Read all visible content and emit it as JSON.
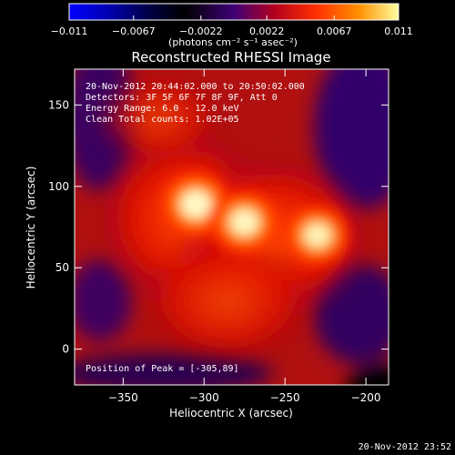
{
  "colorbar": {
    "ticks": [
      {
        "value": -0.011,
        "label": "−0.011"
      },
      {
        "value": -0.0067,
        "label": "−0.0067"
      },
      {
        "value": -0.0022,
        "label": "−0.0022"
      },
      {
        "value": 0.0022,
        "label": "0.0022"
      },
      {
        "value": 0.0067,
        "label": "0.0067"
      },
      {
        "value": 0.011,
        "label": "0.011"
      }
    ],
    "range": [
      -0.011,
      0.011
    ],
    "unit_label": "(photons cm⁻² s⁻¹ asec⁻²)"
  },
  "chart_data": {
    "type": "heatmap",
    "title": "Reconstructed RHESSI Image",
    "xlabel": "Heliocentric X (arcsec)",
    "ylabel": "Heliocentric Y (arcsec)",
    "xlim": [
      -380,
      -186
    ],
    "ylim": [
      -22,
      172
    ],
    "x_ticks": [
      -350,
      -300,
      -250,
      -200
    ],
    "y_ticks": [
      0,
      50,
      100,
      150
    ],
    "x_tick_labels": [
      "−350",
      "−300",
      "−250",
      "−200"
    ],
    "y_tick_labels": [
      "0",
      "50",
      "100",
      "150"
    ],
    "sources": [
      {
        "x": -305,
        "y": 89,
        "relative_intensity": 1.0
      },
      {
        "x": -275,
        "y": 78,
        "relative_intensity": 0.92
      },
      {
        "x": -230,
        "y": 70,
        "relative_intensity": 0.82
      }
    ],
    "info_lines": [
      "20-Nov-2012 20:44:02.000 to 20:50:02.000",
      "Detectors: 3F 5F 6F 7F 8F 9F, Att 0",
      "Energy Range: 6.0 - 12.0 keV",
      "Clean    Total counts: 1.02E+05"
    ],
    "peak_label": "Position of Peak = [-305,89]"
  },
  "footer": {
    "timestamp": "20-Nov-2012 23:52"
  }
}
